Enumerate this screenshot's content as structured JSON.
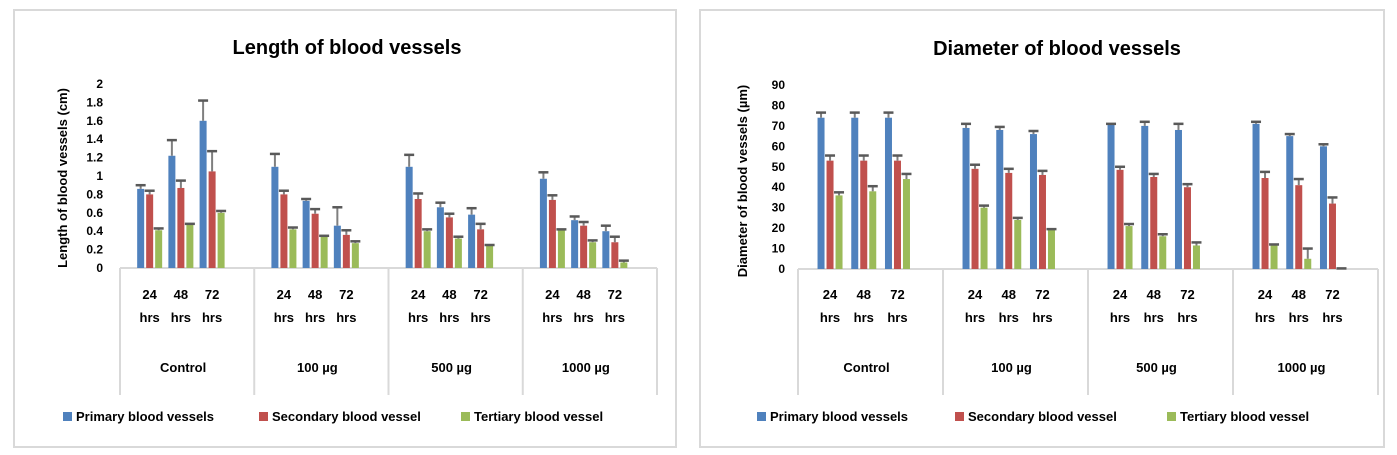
{
  "chart_data": [
    {
      "type": "bar",
      "title": "Length of blood vessels",
      "xlabel": "",
      "ylabel": "Length of blood vessels (cm)",
      "ylim": [
        0,
        2
      ],
      "yticks": [
        "0",
        "0.2",
        "0.4",
        "0.6",
        "0.8",
        "1",
        "1.2",
        "1.4",
        "1.6",
        "1.8",
        "2"
      ],
      "groups": [
        "Control",
        "100 µg",
        "500 µg",
        "1000 µg"
      ],
      "subcategories": [
        [
          "24",
          "hrs"
        ],
        [
          "48",
          "hrs"
        ],
        [
          "72",
          "hrs"
        ]
      ],
      "legend_position": "bottom",
      "grid": false,
      "series": [
        {
          "name": "Primary blood vessels",
          "color": "#4f81bd",
          "values": [
            0.86,
            1.22,
            1.6,
            1.1,
            0.73,
            0.46,
            1.1,
            0.66,
            0.58,
            0.97,
            0.52,
            0.4
          ],
          "errors": [
            0.04,
            0.17,
            0.22,
            0.14,
            0.02,
            0.2,
            0.13,
            0.05,
            0.07,
            0.07,
            0.04,
            0.06
          ]
        },
        {
          "name": "Secondary blood vessel",
          "color": "#c0504d",
          "values": [
            0.8,
            0.87,
            1.05,
            0.8,
            0.59,
            0.36,
            0.75,
            0.55,
            0.42,
            0.74,
            0.46,
            0.28
          ],
          "errors": [
            0.04,
            0.08,
            0.22,
            0.04,
            0.05,
            0.05,
            0.06,
            0.04,
            0.06,
            0.05,
            0.04,
            0.06
          ]
        },
        {
          "name": "Tertiary blood vessel",
          "color": "#9bbb59",
          "values": [
            0.41,
            0.48,
            0.6,
            0.42,
            0.35,
            0.27,
            0.4,
            0.32,
            0.24,
            0.42,
            0.28,
            0.06
          ],
          "errors": [
            0.02,
            0.0,
            0.02,
            0.02,
            0.0,
            0.02,
            0.02,
            0.02,
            0.01,
            0.0,
            0.02,
            0.02
          ]
        }
      ]
    },
    {
      "type": "bar",
      "title": "Diameter of blood vessels",
      "xlabel": "",
      "ylabel": "Diameter of blood vessels (µm)",
      "ylim": [
        0,
        90
      ],
      "yticks": [
        "0",
        "10",
        "20",
        "30",
        "40",
        "50",
        "60",
        "70",
        "80",
        "90"
      ],
      "groups": [
        "Control",
        "100 µg",
        "500 µg",
        "1000 µg"
      ],
      "subcategories": [
        [
          "24",
          "hrs"
        ],
        [
          "48",
          "hrs"
        ],
        [
          "72",
          "hrs"
        ]
      ],
      "legend_position": "bottom",
      "grid": false,
      "series": [
        {
          "name": "Primary blood vessels",
          "color": "#4f81bd",
          "values": [
            74,
            74,
            74,
            69,
            68,
            66,
            71,
            70,
            68,
            71,
            65,
            60
          ],
          "errors": [
            2.5,
            2.5,
            2.5,
            2,
            1.5,
            1.5,
            0,
            2,
            3,
            1,
            1,
            1
          ]
        },
        {
          "name": "Secondary blood vessel",
          "color": "#c0504d",
          "values": [
            53,
            53,
            53,
            49,
            47,
            46,
            48.5,
            45,
            40,
            44.5,
            41,
            32
          ],
          "errors": [
            2.5,
            2.5,
            2.5,
            2,
            2,
            2,
            1.5,
            1.5,
            1.5,
            3,
            3,
            3
          ]
        },
        {
          "name": "Tertiary blood vessel",
          "color": "#9bbb59",
          "values": [
            36,
            38,
            44,
            30,
            24,
            19.5,
            21,
            16,
            11.5,
            11.5,
            5,
            0.3
          ],
          "errors": [
            1.5,
            2.5,
            2.5,
            1,
            1,
            0,
            1,
            1,
            1.5,
            0.5,
            5,
            0
          ]
        }
      ]
    }
  ]
}
